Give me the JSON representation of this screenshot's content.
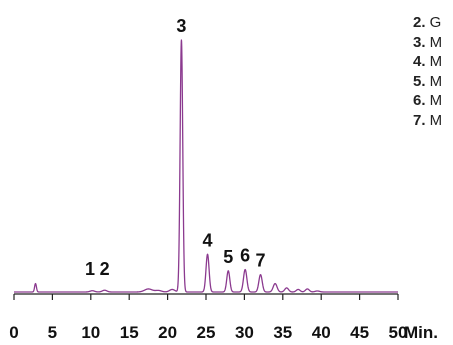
{
  "chart_data": {
    "type": "line",
    "x_axis": {
      "min": 0,
      "max": 50,
      "ticks": [
        0,
        5,
        10,
        15,
        20,
        25,
        30,
        35,
        40,
        45,
        50
      ],
      "tick_labels": [
        "0",
        "5",
        "10",
        "15",
        "20",
        "25",
        "30",
        "35",
        "40",
        "45",
        "50"
      ],
      "unit_label": "Min."
    },
    "y_axis": {
      "min": 0,
      "max": 1
    },
    "grid": false,
    "colors": {
      "trace": "#8b3a8f",
      "axis": "#222222",
      "text": "#111111"
    },
    "baseline": 0.012,
    "peaks": [
      {
        "x": 2.8,
        "height": 0.045,
        "width": 0.12
      },
      {
        "x": 10.2,
        "height": 0.005,
        "width": 0.3
      },
      {
        "x": 11.8,
        "height": 0.007,
        "width": 0.3
      },
      {
        "x": 17.5,
        "height": 0.012,
        "width": 0.5
      },
      {
        "x": 18.8,
        "height": 0.018,
        "width": 0.4
      },
      {
        "x": 20.6,
        "height": 0.022,
        "width": 0.35
      },
      {
        "x": 21.8,
        "height": 1.0,
        "width": 0.17
      },
      {
        "x": 25.2,
        "height": 0.16,
        "width": 0.2
      },
      {
        "x": 27.9,
        "height": 0.095,
        "width": 0.2
      },
      {
        "x": 30.1,
        "height": 0.1,
        "width": 0.22
      },
      {
        "x": 32.1,
        "height": 0.08,
        "width": 0.22
      },
      {
        "x": 34.0,
        "height": 0.045,
        "width": 0.25
      },
      {
        "x": 35.5,
        "height": 0.028,
        "width": 0.25
      },
      {
        "x": 37.0,
        "height": 0.022,
        "width": 0.25
      },
      {
        "x": 38.2,
        "height": 0.024,
        "width": 0.25
      },
      {
        "x": 39.5,
        "height": 0.016,
        "width": 0.3
      }
    ],
    "peak_labels": [
      {
        "text": "1",
        "x": 9.9
      },
      {
        "text": "2",
        "x": 11.8
      },
      {
        "text": "3",
        "x": 21.8
      },
      {
        "text": "4",
        "x": 25.2
      },
      {
        "text": "5",
        "x": 27.9
      },
      {
        "text": "6",
        "x": 30.1
      },
      {
        "text": "7",
        "x": 32.1
      }
    ],
    "legend": [
      {
        "number": "2.",
        "text": "G"
      },
      {
        "number": "3.",
        "text": "M"
      },
      {
        "number": "4.",
        "text": "M"
      },
      {
        "number": "5.",
        "text": "M"
      },
      {
        "number": "6.",
        "text": "M"
      },
      {
        "number": "7.",
        "text": "M"
      }
    ]
  }
}
